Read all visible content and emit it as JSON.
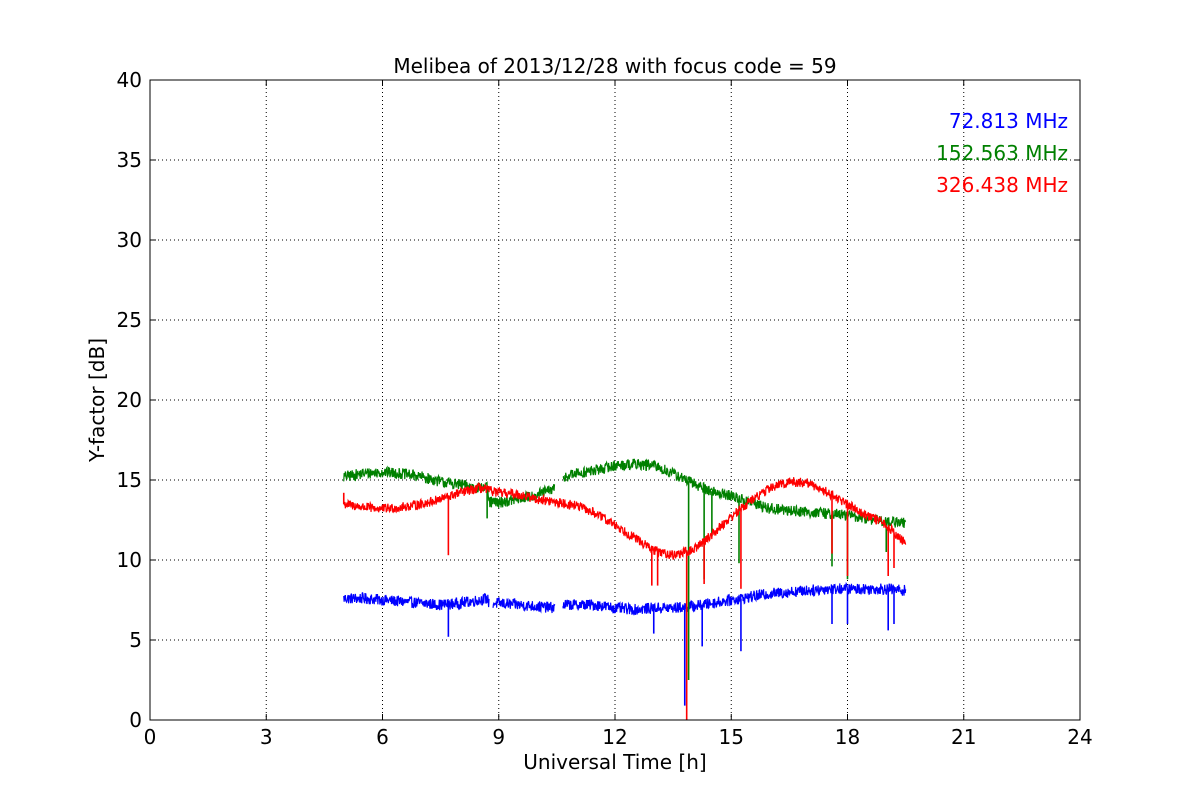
{
  "chart_data": {
    "type": "line",
    "title": "Melibea of 2013/12/28 with focus code = 59",
    "xlabel": "Universal Time [h]",
    "ylabel": "Y-factor [dB]",
    "xlim": [
      0,
      24
    ],
    "ylim": [
      0,
      40
    ],
    "xticks": [
      0,
      3,
      6,
      9,
      12,
      15,
      18,
      21,
      24
    ],
    "yticks": [
      0,
      5,
      10,
      15,
      20,
      25,
      30,
      35,
      40
    ],
    "grid": true,
    "legend_position": "top-right",
    "series": [
      {
        "name": "72.813 MHz",
        "color": "#0000ff",
        "noise": 0.35,
        "x": [
          5.0,
          5.5,
          6.0,
          6.5,
          7.0,
          7.5,
          8.0,
          8.5,
          8.7,
          8.75,
          9.0,
          9.5,
          10.0,
          10.5,
          10.7,
          11.0,
          11.5,
          12.0,
          12.5,
          13.0,
          13.5,
          14.0,
          14.5,
          15.0,
          15.5,
          16.0,
          16.5,
          17.0,
          17.5,
          18.0,
          18.5,
          19.0,
          19.5
        ],
        "y": [
          7.6,
          7.6,
          7.5,
          7.4,
          7.3,
          7.2,
          7.3,
          7.5,
          7.6,
          7.3,
          7.3,
          7.2,
          7.1,
          7.0,
          7.2,
          7.2,
          7.2,
          7.0,
          6.9,
          7.0,
          7.0,
          7.1,
          7.3,
          7.5,
          7.7,
          7.9,
          8.0,
          8.1,
          8.2,
          8.2,
          8.2,
          8.2,
          8.1
        ],
        "gaps": [
          [
            8.75,
            8.85
          ],
          [
            10.45,
            10.65
          ]
        ],
        "spikes": [
          [
            7.7,
            5.2
          ],
          [
            13.0,
            5.4
          ],
          [
            13.8,
            0.9
          ],
          [
            14.25,
            4.6
          ],
          [
            15.25,
            4.3
          ],
          [
            17.6,
            6.0
          ],
          [
            18.0,
            6.0
          ],
          [
            19.05,
            5.6
          ],
          [
            19.2,
            6.0
          ]
        ]
      },
      {
        "name": "152.563 MHz",
        "color": "#008000",
        "noise": 0.35,
        "x": [
          5.0,
          5.5,
          6.0,
          6.5,
          7.0,
          7.5,
          8.0,
          8.5,
          8.7,
          8.75,
          9.0,
          9.5,
          10.0,
          10.5,
          10.7,
          11.0,
          11.5,
          12.0,
          12.5,
          13.0,
          13.5,
          14.0,
          14.5,
          15.0,
          15.5,
          16.0,
          16.5,
          17.0,
          17.5,
          18.0,
          18.5,
          19.0,
          19.5
        ],
        "y": [
          15.2,
          15.4,
          15.5,
          15.4,
          15.2,
          14.9,
          14.7,
          14.5,
          14.5,
          13.6,
          13.6,
          13.8,
          14.1,
          14.5,
          15.2,
          15.4,
          15.6,
          15.9,
          16.0,
          15.9,
          15.4,
          14.8,
          14.3,
          14.0,
          13.6,
          13.2,
          13.1,
          13.0,
          12.9,
          12.8,
          12.6,
          12.4,
          12.3
        ],
        "gaps": [
          [
            10.45,
            10.65
          ]
        ],
        "spikes": [
          [
            8.7,
            12.6
          ],
          [
            13.9,
            2.5
          ],
          [
            14.3,
            8.8
          ],
          [
            14.5,
            11.5
          ],
          [
            15.2,
            9.8
          ],
          [
            17.6,
            9.6
          ],
          [
            18.0,
            8.8
          ],
          [
            19.0,
            10.5
          ]
        ]
      },
      {
        "name": "326.438 MHz",
        "color": "#ff0000",
        "noise": 0.3,
        "x": [
          5.0,
          5.5,
          6.0,
          6.5,
          7.0,
          7.5,
          8.0,
          8.5,
          9.0,
          9.5,
          10.0,
          10.5,
          11.0,
          11.5,
          12.0,
          12.5,
          13.0,
          13.5,
          14.0,
          14.5,
          15.0,
          15.5,
          16.0,
          16.5,
          17.0,
          17.5,
          18.0,
          18.5,
          19.0,
          19.5
        ],
        "y": [
          13.5,
          13.3,
          13.2,
          13.3,
          13.5,
          13.8,
          14.2,
          14.5,
          14.2,
          14.1,
          13.8,
          13.6,
          13.4,
          12.9,
          12.2,
          11.4,
          10.6,
          10.3,
          10.6,
          11.6,
          12.7,
          13.7,
          14.5,
          14.9,
          14.8,
          14.2,
          13.5,
          12.8,
          12.2,
          11.0
        ],
        "gaps": [],
        "spikes": [
          [
            5.0,
            14.2
          ],
          [
            7.7,
            10.3
          ],
          [
            12.95,
            8.4
          ],
          [
            13.1,
            8.4
          ],
          [
            13.85,
            0.0
          ],
          [
            14.3,
            8.5
          ],
          [
            15.25,
            8.2
          ],
          [
            17.6,
            10.4
          ],
          [
            18.0,
            9.0
          ],
          [
            19.05,
            9.0
          ],
          [
            19.2,
            9.5
          ]
        ]
      }
    ]
  }
}
